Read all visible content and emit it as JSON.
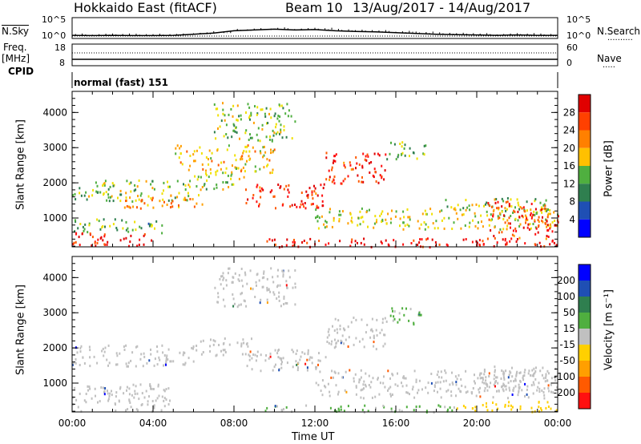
{
  "header": {
    "radar": "Hokkaido East (fitACF)",
    "beam": "Beam 10",
    "dates": "13/Aug/2017 - 14/Aug/2017"
  },
  "left_labels": {
    "nsky": "N.Sky",
    "freq": "Freq.",
    "freq_unit": "[MHz]",
    "cpid": "CPID"
  },
  "right_labels": {
    "nsearch": "N.Search",
    "nave": "Nave"
  },
  "cpid_text": "normal (fast) 151",
  "colors": {
    "power": [
      "#0000ff",
      "#1f4fb4",
      "#2f7f4f",
      "#4faf3f",
      "#f0e000",
      "#ff9f00",
      "#ff5a00",
      "#ff1010",
      "#e00000"
    ],
    "velocity": [
      "#0000ff",
      "#1f4fb4",
      "#2f7f4f",
      "#4faf3f",
      "#c0c0c0",
      "#ffd000",
      "#ff9f00",
      "#ff5a00",
      "#ff1010"
    ]
  },
  "chart_data": [
    {
      "type": "line",
      "name": "N.Sky",
      "xlabel": "",
      "ylabel": "N.Sky",
      "y_ticks_left": [
        "10^5",
        "10^0"
      ],
      "y_ticks_right": [
        "10^5",
        "10^0"
      ],
      "x_hours": [
        0,
        1,
        2,
        3,
        4,
        5,
        6,
        7,
        8,
        9,
        10,
        11,
        12,
        13,
        14,
        15,
        16,
        17,
        18,
        19,
        20,
        21,
        22,
        23,
        24
      ],
      "values_log10": [
        0.6,
        0.55,
        0.6,
        0.55,
        0.55,
        0.6,
        0.9,
        1.2,
        1.8,
        2.0,
        2.2,
        2.0,
        2.1,
        1.8,
        1.6,
        1.5,
        1.3,
        1.1,
        0.9,
        0.8,
        0.7,
        0.6,
        0.7,
        0.6,
        0.6
      ]
    },
    {
      "type": "line",
      "name": "Freq",
      "ylabel": "Freq. [MHz]",
      "y_ticks_left": [
        "18",
        "8"
      ],
      "y_ticks_right": [
        "60",
        "0"
      ],
      "ylim": [
        8,
        18
      ],
      "x_hours": [
        0,
        24
      ],
      "values": [
        10.5,
        10.5
      ]
    },
    {
      "type": "heatmap",
      "name": "Power",
      "xlabel": "",
      "ylabel": "Slant Range [km]",
      "y_ticks": [
        1000,
        2000,
        3000,
        4000
      ],
      "ylim": [
        180,
        4600
      ],
      "colorbar_label": "Power [dB]",
      "colorbar_ticks": [
        4,
        8,
        12,
        16,
        20,
        24,
        28
      ],
      "clim": [
        0,
        32
      ],
      "regions": [
        {
          "t0": 0.0,
          "t1": 4.0,
          "r0": 200,
          "r1": 600,
          "level": 28
        },
        {
          "t0": 0.0,
          "t1": 4.5,
          "r0": 600,
          "r1": 1000,
          "level": 12
        },
        {
          "t0": 0.0,
          "t1": 6.0,
          "r0": 1500,
          "r1": 2100,
          "level": 14
        },
        {
          "t0": 2.5,
          "t1": 6.5,
          "r0": 1300,
          "r1": 1700,
          "level": 20
        },
        {
          "t0": 6.0,
          "t1": 8.5,
          "r0": 1800,
          "r1": 2300,
          "level": 14
        },
        {
          "t0": 8.5,
          "t1": 12.5,
          "r0": 1300,
          "r1": 2000,
          "level": 26
        },
        {
          "t0": 12.5,
          "t1": 15.5,
          "r0": 2000,
          "r1": 2900,
          "level": 26
        },
        {
          "t0": 15.5,
          "t1": 17.5,
          "r0": 2700,
          "r1": 3200,
          "level": 12
        },
        {
          "t0": 9.5,
          "t1": 24.0,
          "r0": 200,
          "r1": 450,
          "level": 28
        },
        {
          "t0": 12.0,
          "t1": 24.0,
          "r0": 700,
          "r1": 1300,
          "level": 16
        },
        {
          "t0": 18.0,
          "t1": 24.0,
          "r0": 1200,
          "r1": 1600,
          "level": 14
        },
        {
          "t0": 20.5,
          "t1": 24.0,
          "r0": 400,
          "r1": 1500,
          "level": 26
        },
        {
          "t0": 7.0,
          "t1": 11.0,
          "r0": 3200,
          "r1": 4300,
          "level": 14
        },
        {
          "t0": 5.0,
          "t1": 10.0,
          "r0": 2300,
          "r1": 3100,
          "level": 18
        }
      ]
    },
    {
      "type": "heatmap",
      "name": "Velocity",
      "xlabel": "Time UT",
      "ylabel": "Slant Range [km]",
      "x_tick_labels": [
        "00:00",
        "04:00",
        "08:00",
        "12:00",
        "16:00",
        "20:00",
        "00:00"
      ],
      "y_ticks": [
        1000,
        2000,
        3000,
        4000
      ],
      "ylim": [
        180,
        4600
      ],
      "colorbar_label": "Velocity [m s⁻¹]",
      "colorbar_ticks": [
        200,
        100,
        50,
        15,
        -15,
        -50,
        -100,
        -200
      ],
      "regions": [
        {
          "t0": 0.0,
          "t1": 5.0,
          "r0": 200,
          "r1": 1000,
          "level": 0
        },
        {
          "t0": 0.0,
          "t1": 6.0,
          "r0": 1500,
          "r1": 2100,
          "level": 0
        },
        {
          "t0": 6.0,
          "t1": 9.0,
          "r0": 1800,
          "r1": 2300,
          "level": 0
        },
        {
          "t0": 8.5,
          "t1": 12.5,
          "r0": 1300,
          "r1": 2000,
          "level": 0
        },
        {
          "t0": 12.5,
          "t1": 15.5,
          "r0": 2000,
          "r1": 2900,
          "level": 0
        },
        {
          "t0": 15.5,
          "t1": 17.5,
          "r0": 2700,
          "r1": 3200,
          "level": 20
        },
        {
          "t0": 9.5,
          "t1": 19.0,
          "r0": 200,
          "r1": 400,
          "level": 20
        },
        {
          "t0": 19.0,
          "t1": 24.0,
          "r0": 200,
          "r1": 500,
          "level": -30
        },
        {
          "t0": 12.0,
          "t1": 24.0,
          "r0": 600,
          "r1": 1400,
          "level": 0
        },
        {
          "t0": 20.0,
          "t1": 24.0,
          "r0": 800,
          "r1": 1500,
          "level": 0
        },
        {
          "t0": 7.0,
          "t1": 11.0,
          "r0": 3200,
          "r1": 4300,
          "level": 0
        }
      ]
    }
  ],
  "x_axis": {
    "label": "Time UT",
    "ticks": [
      "00:00",
      "04:00",
      "08:00",
      "12:00",
      "16:00",
      "20:00",
      "00:00"
    ]
  }
}
